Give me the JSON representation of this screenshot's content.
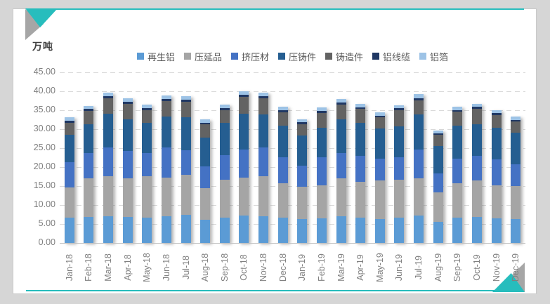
{
  "page": {
    "background": "#D6D6D6",
    "card_background": "#FFFFFF",
    "accent_teal": "#27BDBD",
    "accent_gray": "#A6A6A6"
  },
  "chart_data": {
    "type": "bar",
    "stacked": true,
    "unit_label": "万吨",
    "legend_position": "top",
    "grid": "horizontal-dashed",
    "x_label_rotation": -90,
    "ylim": [
      0,
      45
    ],
    "ytick_step": 5,
    "ytick_decimals": 2,
    "categories": [
      "Jan-18",
      "Feb-18",
      "Mar-18",
      "Apr-18",
      "May-18",
      "Jun-18",
      "Jul-18",
      "Aug-18",
      "Sep-18",
      "Oct-18",
      "Nov-18",
      "Dec-18",
      "Jan-19",
      "Feb-19",
      "Mar-19",
      "Apr-19",
      "May-19",
      "Jun-19",
      "Jul-19",
      "Aug-19",
      "Sep-19",
      "Oct-19",
      "Nov-19",
      "Dec-19"
    ],
    "series": [
      {
        "name": "再生铝",
        "color": "#5B9BD5",
        "values": [
          6.7,
          6.9,
          7.0,
          6.9,
          6.7,
          7.0,
          7.4,
          6.1,
          6.7,
          7.2,
          7.0,
          6.7,
          6.3,
          6.4,
          7.0,
          6.7,
          6.3,
          6.6,
          7.2,
          5.5,
          6.6,
          6.9,
          6.4,
          6.3
        ]
      },
      {
        "name": "压延品",
        "color": "#A5A5A5",
        "values": [
          8.0,
          10.1,
          10.6,
          10.2,
          10.9,
          10.3,
          10.5,
          8.4,
          10.0,
          10.1,
          10.6,
          9.0,
          8.5,
          8.8,
          10.1,
          9.4,
          10.2,
          10.1,
          9.9,
          7.9,
          9.1,
          9.6,
          8.8,
          8.7
        ]
      },
      {
        "name": "挤压材",
        "color": "#4472C4",
        "values": [
          6.6,
          6.8,
          7.6,
          7.2,
          6.2,
          7.8,
          6.5,
          5.6,
          6.5,
          7.3,
          7.6,
          6.9,
          5.6,
          7.4,
          6.7,
          6.8,
          5.8,
          5.9,
          7.5,
          5.0,
          6.6,
          6.4,
          6.8,
          5.8
        ]
      },
      {
        "name": "压铸件",
        "color": "#255E91",
        "values": [
          7.2,
          7.5,
          8.9,
          8.3,
          7.8,
          8.3,
          8.7,
          7.6,
          8.4,
          9.4,
          8.7,
          8.4,
          7.9,
          7.7,
          8.8,
          8.8,
          7.8,
          8.2,
          9.3,
          7.2,
          8.7,
          8.4,
          8.3,
          8.3
        ]
      },
      {
        "name": "铸造件",
        "color": "#636363",
        "values": [
          3.2,
          3.6,
          4.0,
          4.0,
          3.4,
          4.0,
          4.1,
          3.6,
          3.4,
          4.5,
          4.3,
          3.5,
          3.0,
          3.9,
          3.8,
          3.6,
          3.0,
          4.3,
          3.7,
          2.9,
          3.7,
          4.1,
          3.5,
          2.9
        ]
      },
      {
        "name": "铝线缆",
        "color": "#203864",
        "values": [
          0.5,
          0.5,
          0.6,
          0.6,
          0.6,
          0.6,
          0.6,
          0.4,
          0.6,
          0.6,
          0.5,
          0.6,
          0.5,
          0.6,
          0.6,
          0.5,
          0.5,
          0.5,
          0.6,
          0.4,
          0.4,
          0.5,
          0.4,
          0.5
        ]
      },
      {
        "name": "铝箔",
        "color": "#9DC3E6",
        "values": [
          0.9,
          0.8,
          1.0,
          0.9,
          0.8,
          0.9,
          0.9,
          0.9,
          0.8,
          1.0,
          1.0,
          0.8,
          0.8,
          1.0,
          1.0,
          0.9,
          0.9,
          0.8,
          1.0,
          0.8,
          0.8,
          0.8,
          0.9,
          0.8
        ]
      }
    ]
  }
}
